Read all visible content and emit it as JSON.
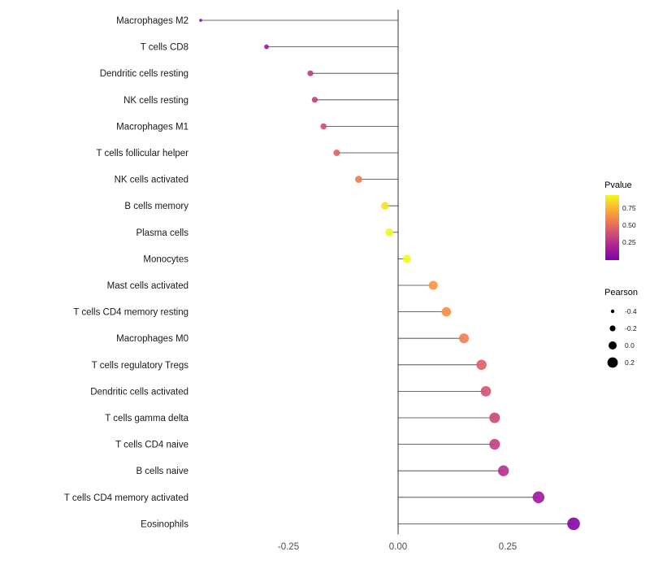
{
  "chart_data": {
    "type": "lollipop",
    "title": "",
    "xlabel": "",
    "ylabel": "",
    "xlim": [
      -0.52,
      0.47
    ],
    "grid": false,
    "x_ticks": [
      "-0.25",
      "0.00",
      "0.25"
    ],
    "x_tick_values": [
      -0.25,
      0.0,
      0.25
    ],
    "points": [
      {
        "label": "Macrophages M2",
        "pearson": -0.45,
        "pvalue": 0.15,
        "color": "#8B0AA5"
      },
      {
        "label": "T cells CD8",
        "pearson": -0.3,
        "pvalue": 0.2,
        "color": "#9C179E"
      },
      {
        "label": "Dendritic cells resting",
        "pearson": -0.2,
        "pvalue": 0.33,
        "color": "#BF3984"
      },
      {
        "label": "NK cells resting",
        "pearson": -0.19,
        "pvalue": 0.36,
        "color": "#C5407E"
      },
      {
        "label": "Macrophages M1",
        "pearson": -0.17,
        "pvalue": 0.42,
        "color": "#D14E72"
      },
      {
        "label": "T cells follicular helper",
        "pearson": -0.14,
        "pvalue": 0.48,
        "color": "#E05F64"
      },
      {
        "label": "NK cells activated",
        "pearson": -0.09,
        "pvalue": 0.58,
        "color": "#EE7B51"
      },
      {
        "label": "B cells memory",
        "pearson": -0.03,
        "pvalue": 0.92,
        "color": "#F7E225"
      },
      {
        "label": "Plasma cells",
        "pearson": -0.02,
        "pvalue": 0.9,
        "color": "#F0F921"
      },
      {
        "label": "Monocytes",
        "pearson": 0.02,
        "pvalue": 0.93,
        "color": "#F0F921"
      },
      {
        "label": "Mast cells activated",
        "pearson": 0.08,
        "pvalue": 0.65,
        "color": "#F89540"
      },
      {
        "label": "T cells CD4 memory resting",
        "pearson": 0.11,
        "pvalue": 0.6,
        "color": "#F58C46"
      },
      {
        "label": "Macrophages M0",
        "pearson": 0.15,
        "pvalue": 0.55,
        "color": "#EF7E50"
      },
      {
        "label": "T cells regulatory  Tregs",
        "pearson": 0.19,
        "pvalue": 0.47,
        "color": "#DE6066"
      },
      {
        "label": "Dendritic cells activated",
        "pearson": 0.2,
        "pvalue": 0.43,
        "color": "#D5536F"
      },
      {
        "label": "T cells gamma delta",
        "pearson": 0.22,
        "pvalue": 0.4,
        "color": "#CC4778"
      },
      {
        "label": "T cells CD4 naive",
        "pearson": 0.22,
        "pvalue": 0.37,
        "color": "#C53C81"
      },
      {
        "label": "B cells naive",
        "pearson": 0.24,
        "pvalue": 0.32,
        "color": "#B52F8C"
      },
      {
        "label": "T cells CD4 memory activated",
        "pearson": 0.32,
        "pvalue": 0.2,
        "color": "#9C179E"
      },
      {
        "label": "Eosinophils",
        "pearson": 0.4,
        "pvalue": 0.12,
        "color": "#8405A7"
      }
    ],
    "legend": {
      "pvalue": {
        "title": "Pvalue",
        "ticks": [
          "0.75",
          "0.50",
          "0.25"
        ],
        "gradient": [
          "#F0F921",
          "#FCA636",
          "#E16462",
          "#B12A90",
          "#7E03A8"
        ]
      },
      "pearson": {
        "title": "Pearson",
        "ticks": [
          "-0.4",
          "-0.2",
          "0.0",
          "0.2"
        ],
        "tick_values": [
          -0.4,
          -0.2,
          0.0,
          0.2
        ],
        "dot_color": "#000000"
      }
    },
    "style": {
      "axis_text_color": "#4d4d4d",
      "label_text_color": "#1a1a1a",
      "stick_color": "#3a3a3a",
      "zero_line_color": "#000000",
      "background": "#ffffff"
    }
  }
}
